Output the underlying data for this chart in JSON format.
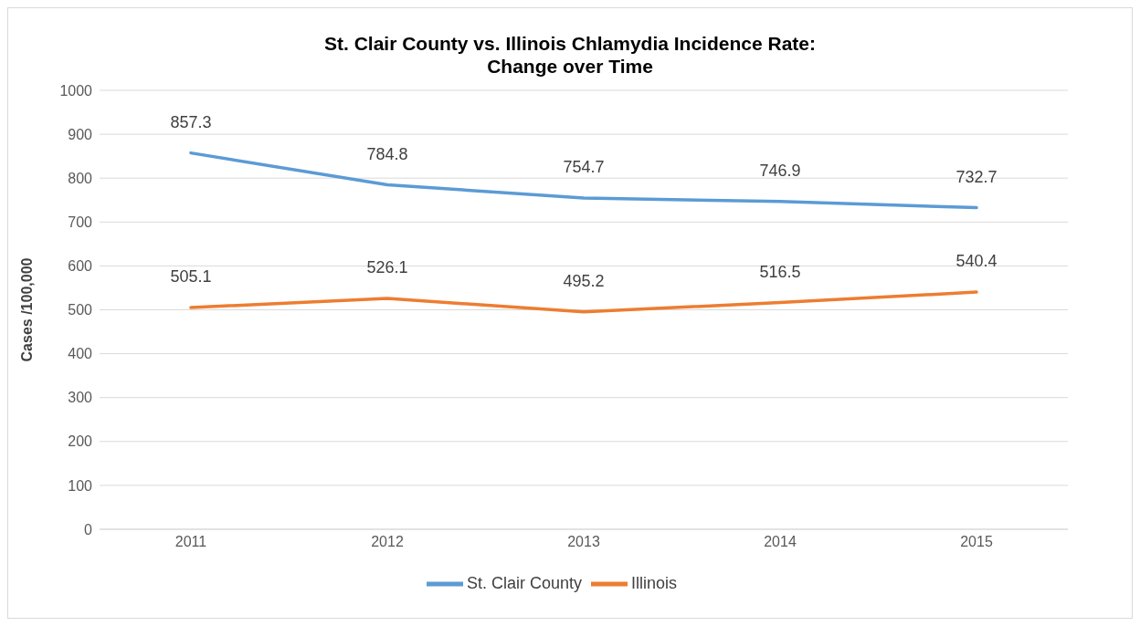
{
  "chart_data": {
    "type": "line",
    "title": "St. Clair County vs. Illinois Chlamydia Incidence Rate:\nChange over Time",
    "ylabel": "Cases /100,000",
    "categories": [
      "2011",
      "2012",
      "2013",
      "2014",
      "2015"
    ],
    "series": [
      {
        "name": "St. Clair County",
        "color": "#5b9bd5",
        "values": [
          857.3,
          784.8,
          754.7,
          746.9,
          732.7
        ]
      },
      {
        "name": "Illinois",
        "color": "#ed7d31",
        "values": [
          505.1,
          526.1,
          495.2,
          516.5,
          540.4
        ]
      }
    ],
    "ylim": [
      0,
      1000
    ],
    "yticks": [
      0,
      100,
      200,
      300,
      400,
      500,
      600,
      700,
      800,
      900,
      1000
    ],
    "grid": "y",
    "legend": "bottom",
    "marker": "none",
    "line_style": "solid",
    "data_labels": true
  }
}
